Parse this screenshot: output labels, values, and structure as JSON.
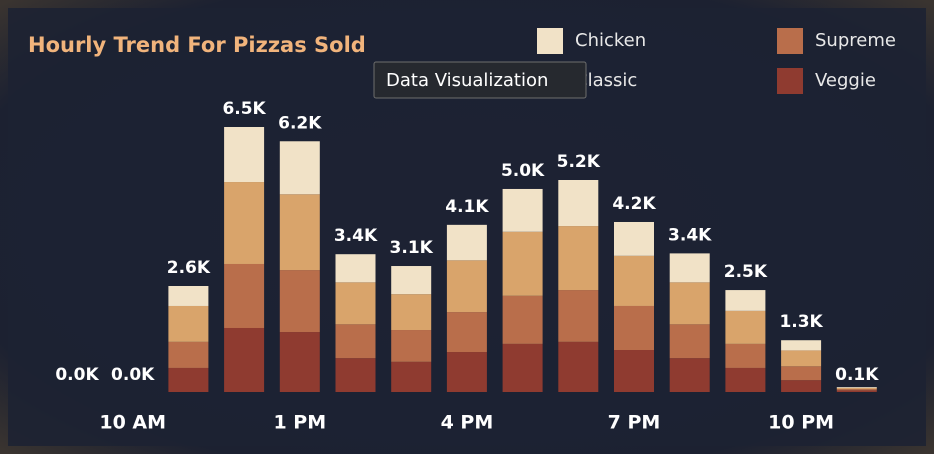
{
  "chart_data": {
    "type": "stacked-bar",
    "title": "Hourly Trend For Pizzas Sold",
    "categories": [
      null,
      "10 AM",
      null,
      null,
      "1 PM",
      null,
      null,
      "4 PM",
      null,
      null,
      "7 PM",
      null,
      null,
      "10 PM",
      null
    ],
    "series": [
      {
        "name": "Veggie",
        "color": "#8f3b30",
        "values": [
          0,
          0,
          590,
          1570,
          1470,
          830,
          740,
          980,
          1180,
          1230,
          1030,
          830,
          590,
          290,
          40
        ]
      },
      {
        "name": "Supreme",
        "color": "#b96e4b",
        "values": [
          0,
          0,
          640,
          1570,
          1520,
          830,
          780,
          980,
          1180,
          1270,
          1080,
          830,
          590,
          340,
          30
        ]
      },
      {
        "name": "Classic",
        "color": "#d9a46b",
        "values": [
          0,
          0,
          880,
          2010,
          1860,
          1030,
          880,
          1270,
          1570,
          1570,
          1230,
          1030,
          810,
          390,
          30
        ]
      },
      {
        "name": "Chicken",
        "color": "#f1e2c7",
        "values": [
          0,
          0,
          490,
          1350,
          1300,
          690,
          690,
          870,
          1050,
          1130,
          830,
          710,
          510,
          250,
          20
        ]
      }
    ],
    "totals": [
      0,
      0,
      2600,
      6500,
      6150,
      3380,
      3090,
      4100,
      4980,
      5200,
      4170,
      3400,
      2500,
      1270,
      120
    ],
    "total_labels": [
      "0.0K",
      "0.0K",
      "2.6K",
      "6.5K",
      "6.2K",
      "3.4K",
      "3.1K",
      "4.1K",
      "5.0K",
      "5.2K",
      "4.2K",
      "3.4K",
      "2.5K",
      "1.3K",
      "0.1K"
    ],
    "tooltip": "Data Visualization"
  }
}
